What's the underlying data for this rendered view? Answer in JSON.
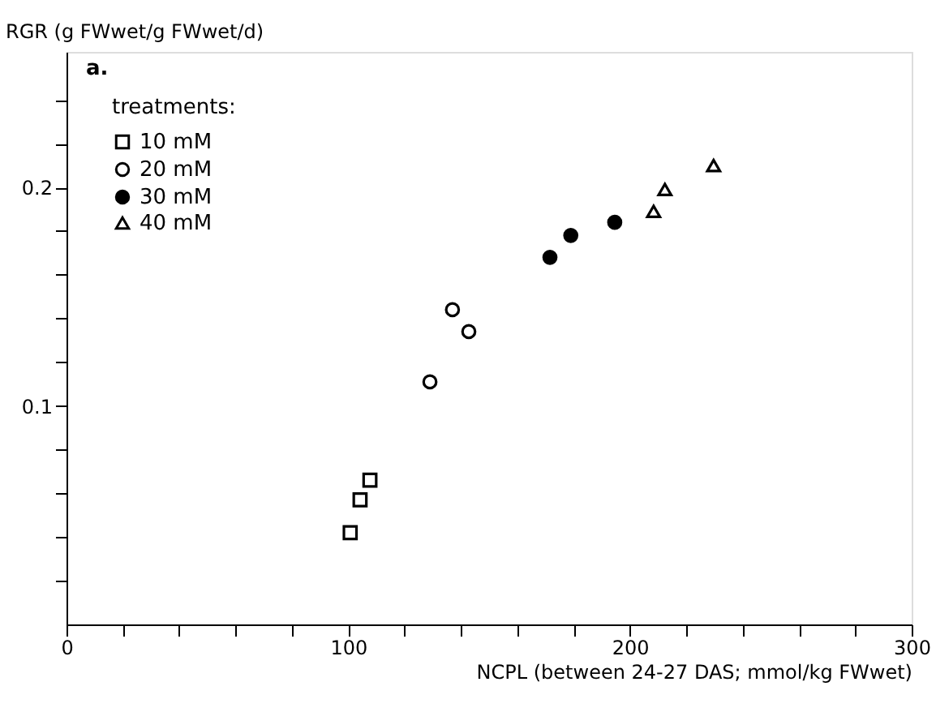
{
  "chart_data": {
    "type": "scatter",
    "xlabel": "NCPL (between 24-27 DAS; mmol/kg FWwet)",
    "ylabel": "RGR (g FWwet/g FWwet/d)",
    "legend_title": "treatments:",
    "annotations": [
      "a."
    ],
    "series": [
      {
        "name": "10 mM",
        "color": "#000000",
        "marker": "square",
        "x": [
          100.7,
          104.2,
          107.7
        ],
        "values": [
          0.042,
          0.057,
          0.066
        ]
      },
      {
        "name": "20 mM",
        "color": "#000000",
        "marker": "circle",
        "x": [
          129,
          137,
          142.8
        ],
        "values": [
          0.111,
          0.144,
          0.134
        ]
      },
      {
        "name": "30 mM",
        "color": "#000000",
        "marker": "circle",
        "x": [
          171.6,
          179,
          194.6
        ],
        "values": [
          0.168,
          0.178,
          0.184
        ]
      },
      {
        "name": "40 mM",
        "color": "#000000",
        "marker": "triangle",
        "x": [
          208.4,
          212.4,
          229.7
        ],
        "values": [
          0.189,
          0.199,
          0.21
        ]
      }
    ],
    "xlim": [
      0,
      300
    ],
    "xticks": [
      0,
      {
        "value": 20,
        "label": null
      },
      {
        "value": 40,
        "label": null
      },
      {
        "value": 60,
        "label": null
      },
      {
        "value": 80,
        "label": null
      },
      100,
      {
        "value": 120,
        "label": null
      },
      {
        "value": 140,
        "label": null
      },
      {
        "value": 160,
        "label": null
      },
      {
        "value": 180,
        "label": null
      },
      200,
      {
        "value": 220,
        "label": null
      },
      {
        "value": 240,
        "label": null
      },
      {
        "value": 260,
        "label": null
      },
      {
        "value": 280,
        "label": null
      },
      300
    ],
    "ylim": [
      0,
      0.262
    ],
    "yticks": [
      {
        "value": 0.02,
        "label": null
      },
      {
        "value": 0.04,
        "label": null
      },
      {
        "value": 0.06,
        "label": null
      },
      {
        "value": 0.08,
        "label": null
      },
      0.1,
      {
        "value": 0.12,
        "label": null
      },
      {
        "value": 0.14,
        "label": null
      },
      {
        "value": 0.16,
        "label": null
      },
      {
        "value": 0.18,
        "label": null
      },
      0.2,
      {
        "value": 0.22,
        "label": null
      },
      {
        "value": 0.24,
        "label": null
      }
    ],
    "grid": false,
    "legend": "top left"
  }
}
